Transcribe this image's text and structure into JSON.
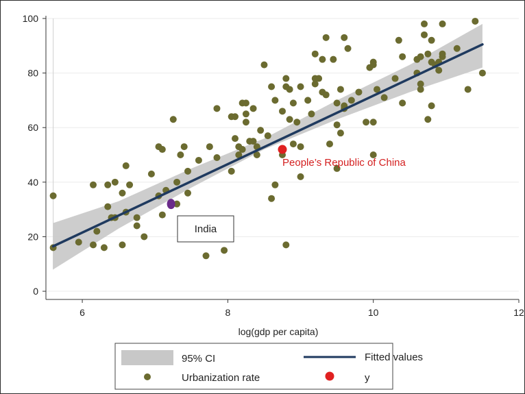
{
  "chart_data": {
    "type": "scatter",
    "xlabel": "log(gdp per capita)",
    "ylabel": "",
    "xlim": [
      5.5,
      12
    ],
    "ylim": [
      -3,
      102
    ],
    "xticks": [
      6,
      8,
      10,
      12
    ],
    "yticks": [
      0,
      20,
      40,
      60,
      80,
      100
    ],
    "grid": true,
    "legend_position": "bottom",
    "colors": {
      "points": "#6b6b30",
      "fit": "#1f3a5f",
      "ci": "#c8c8c8",
      "highlight": "#e02020",
      "india": "#6a2a8a",
      "annotation_china": "#d42020"
    },
    "fitted_values": {
      "name": "Fitted values",
      "x": [
        5.6,
        11.5
      ],
      "y": [
        16.5,
        90.5
      ]
    },
    "confidence_band": {
      "name": "95% CI",
      "x": [
        5.6,
        6.5,
        7.5,
        8.5,
        9.5,
        10.5,
        11.5
      ],
      "lower": [
        8,
        23,
        38,
        52,
        63,
        73,
        82
      ],
      "upper": [
        25,
        33,
        45,
        56,
        70,
        83,
        98
      ]
    },
    "series": [
      {
        "name": "Urbanization rate",
        "points": [
          [
            5.6,
            35
          ],
          [
            5.6,
            16
          ],
          [
            5.95,
            18
          ],
          [
            6.15,
            39
          ],
          [
            6.15,
            17
          ],
          [
            6.2,
            22
          ],
          [
            6.3,
            16
          ],
          [
            6.35,
            39
          ],
          [
            6.35,
            31
          ],
          [
            6.4,
            27
          ],
          [
            6.45,
            40
          ],
          [
            6.45,
            27
          ],
          [
            6.55,
            36
          ],
          [
            6.55,
            17
          ],
          [
            6.6,
            29
          ],
          [
            6.6,
            46
          ],
          [
            6.65,
            39
          ],
          [
            6.75,
            27
          ],
          [
            6.75,
            24
          ],
          [
            6.85,
            20
          ],
          [
            6.95,
            43
          ],
          [
            7.05,
            53
          ],
          [
            7.05,
            35
          ],
          [
            7.1,
            28
          ],
          [
            7.1,
            52
          ],
          [
            7.15,
            37
          ],
          [
            7.25,
            63
          ],
          [
            7.3,
            40
          ],
          [
            7.3,
            32
          ],
          [
            7.35,
            50
          ],
          [
            7.4,
            53
          ],
          [
            7.45,
            36
          ],
          [
            7.45,
            44
          ],
          [
            7.6,
            48
          ],
          [
            7.7,
            13
          ],
          [
            7.75,
            53
          ],
          [
            7.85,
            49
          ],
          [
            7.85,
            67
          ],
          [
            7.95,
            15
          ],
          [
            8.05,
            64
          ],
          [
            8.05,
            44
          ],
          [
            8.1,
            56
          ],
          [
            8.1,
            64
          ],
          [
            8.15,
            53
          ],
          [
            8.15,
            50
          ],
          [
            8.2,
            69
          ],
          [
            8.2,
            52
          ],
          [
            8.25,
            65
          ],
          [
            8.25,
            62
          ],
          [
            8.25,
            69
          ],
          [
            8.3,
            55
          ],
          [
            8.35,
            55
          ],
          [
            8.35,
            67
          ],
          [
            8.4,
            50
          ],
          [
            8.4,
            53
          ],
          [
            8.45,
            59
          ],
          [
            8.5,
            83
          ],
          [
            8.55,
            57
          ],
          [
            8.6,
            34
          ],
          [
            8.6,
            75
          ],
          [
            8.65,
            39
          ],
          [
            8.65,
            70
          ],
          [
            8.75,
            66
          ],
          [
            8.75,
            50
          ],
          [
            8.8,
            78
          ],
          [
            8.8,
            75
          ],
          [
            8.8,
            17
          ],
          [
            8.85,
            63
          ],
          [
            8.85,
            74
          ],
          [
            8.9,
            54
          ],
          [
            8.9,
            69
          ],
          [
            8.95,
            62
          ],
          [
            9.0,
            42
          ],
          [
            9.0,
            75
          ],
          [
            9.0,
            53
          ],
          [
            9.1,
            70
          ],
          [
            9.15,
            65
          ],
          [
            9.2,
            76
          ],
          [
            9.2,
            78
          ],
          [
            9.2,
            87
          ],
          [
            9.25,
            78
          ],
          [
            9.3,
            73
          ],
          [
            9.3,
            85
          ],
          [
            9.35,
            72
          ],
          [
            9.35,
            93
          ],
          [
            9.4,
            54
          ],
          [
            9.45,
            85
          ],
          [
            9.5,
            69
          ],
          [
            9.5,
            61
          ],
          [
            9.5,
            45
          ],
          [
            9.55,
            58
          ],
          [
            9.55,
            74
          ],
          [
            9.6,
            68
          ],
          [
            9.6,
            67
          ],
          [
            9.6,
            93
          ],
          [
            9.65,
            89
          ],
          [
            9.7,
            70
          ],
          [
            9.8,
            73
          ],
          [
            9.9,
            62
          ],
          [
            9.95,
            82
          ],
          [
            10.0,
            84
          ],
          [
            10.0,
            83
          ],
          [
            10.0,
            62
          ],
          [
            10.0,
            50
          ],
          [
            10.05,
            74
          ],
          [
            10.15,
            71
          ],
          [
            10.3,
            78
          ],
          [
            10.35,
            92
          ],
          [
            10.4,
            69
          ],
          [
            10.4,
            86
          ],
          [
            10.6,
            80
          ],
          [
            10.6,
            85
          ],
          [
            10.65,
            76
          ],
          [
            10.65,
            74
          ],
          [
            10.65,
            86
          ],
          [
            10.7,
            98
          ],
          [
            10.7,
            94
          ],
          [
            10.75,
            63
          ],
          [
            10.75,
            87
          ],
          [
            10.8,
            84
          ],
          [
            10.8,
            68
          ],
          [
            10.8,
            92
          ],
          [
            10.85,
            83
          ],
          [
            10.9,
            81
          ],
          [
            10.9,
            84
          ],
          [
            10.95,
            98
          ],
          [
            10.95,
            87
          ],
          [
            10.95,
            86
          ],
          [
            11.15,
            89
          ],
          [
            11.3,
            74
          ],
          [
            11.4,
            99
          ],
          [
            11.5,
            80
          ]
        ]
      },
      {
        "name": "y",
        "points": [
          [
            8.75,
            52
          ]
        ]
      }
    ],
    "india_point": [
      7.22,
      32
    ],
    "annotations": {
      "china": "People’s Republic of China",
      "india": "India"
    },
    "legend": [
      {
        "key": "ci",
        "label": "95% CI"
      },
      {
        "key": "fit",
        "label": "Fitted values"
      },
      {
        "key": "scatter",
        "label": "Urbanization rate"
      },
      {
        "key": "highlight",
        "label": "y"
      }
    ]
  }
}
